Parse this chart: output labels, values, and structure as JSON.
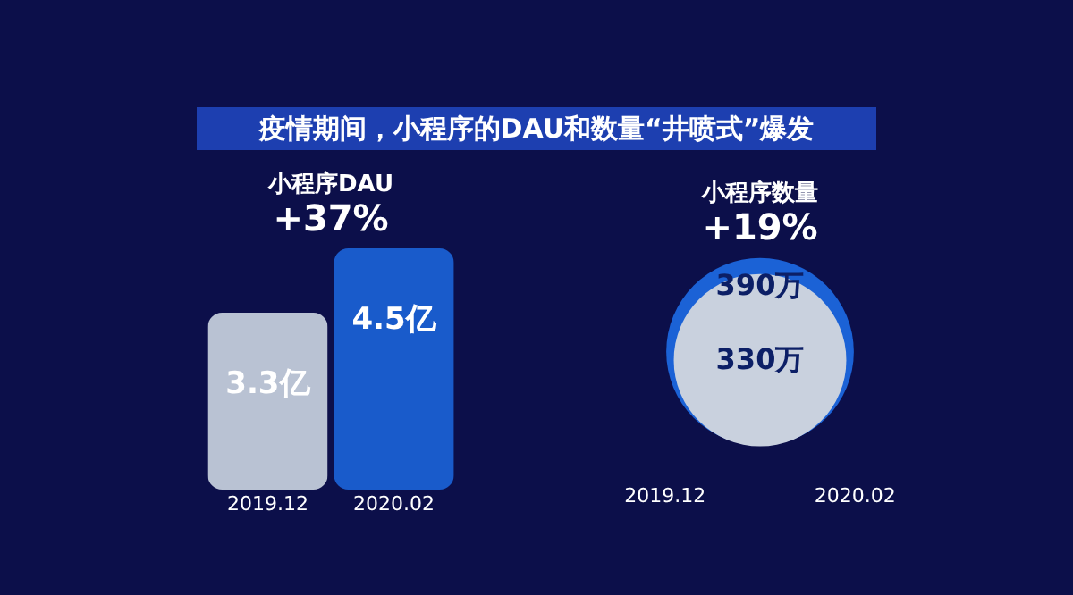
{
  "chart_data": [
    {
      "type": "bar",
      "title": "疫情期间，小程序的DAU和数量“井喷式”爆发",
      "subtitle": "小程序DAU",
      "annotations": [
        "+37%"
      ],
      "categories": [
        "2019.12",
        "2020.02"
      ],
      "values": [
        3.3,
        4.5
      ],
      "value_labels": [
        "3.3亿",
        "4.5亿"
      ],
      "colors": [
        "#c9d1de",
        "#1b62d6"
      ]
    },
    {
      "type": "other",
      "title": "小程序数量",
      "annotations": [
        "+19%"
      ],
      "categories": [
        "2019.12",
        "2020.02"
      ],
      "values": [
        330,
        390
      ],
      "value_labels": [
        "330万",
        "390万"
      ],
      "colors": [
        "#c9d1de",
        "#1b62d6"
      ]
    }
  ]
}
